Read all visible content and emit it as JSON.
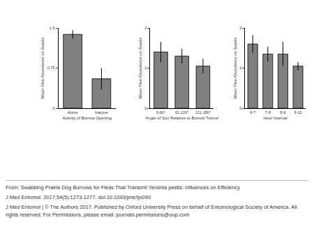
{
  "chart_data": [
    {
      "type": "bar",
      "categories": [
        "Active",
        "Inactive"
      ],
      "values": [
        1.38,
        0.55
      ],
      "error": [
        0.08,
        0.2
      ],
      "color": "#808080",
      "ylim": [
        0,
        1.5
      ],
      "yticks": [
        0,
        0.75,
        1.5
      ],
      "x_label": "Activity of Burrow Opening",
      "y_label": "Mean Flea Abundance on Swabs"
    },
    {
      "type": "bar",
      "categories": [
        "0-60°",
        "61-120°",
        "121-180°"
      ],
      "values": [
        1.4,
        1.3,
        1.05
      ],
      "error": [
        0.25,
        0.18,
        0.18
      ],
      "color": "#808080",
      "ylim": [
        0,
        2
      ],
      "yticks": [
        0,
        1,
        2
      ],
      "x_label": "Angle of Sun Relative to Burrow Tunnel",
      "y_label": "Mean Flea Abundance on Swabs"
    },
    {
      "type": "bar",
      "categories": [
        "6-7",
        "7-8",
        "8-9",
        "9-10"
      ],
      "values": [
        1.6,
        1.35,
        1.35,
        1.05
      ],
      "error": [
        0.22,
        0.18,
        0.3,
        0.1
      ],
      "color": "#808080",
      "ylim": [
        0,
        2
      ],
      "yticks": [
        0,
        1,
        2
      ],
      "x_label": "Hour Interval",
      "y_label": "Mean Flea Abundance on Swabs"
    }
  ],
  "footer": {
    "lines": [
      "From: Swabbing Prairie Dog Burrows for Fleas That Transmit Yersinia pestis: Influences on Efficiency",
      "J Med Entomol. 2017;54(5):1273-1277. doi:10.1093/jme/tjx090",
      "J Med Entomol | © The Authors 2017. Published by Oxford University Press on behalf of Entomological Society of America. All rights reserved. For Permissions, please email: journals.permissions@oup.com"
    ]
  }
}
